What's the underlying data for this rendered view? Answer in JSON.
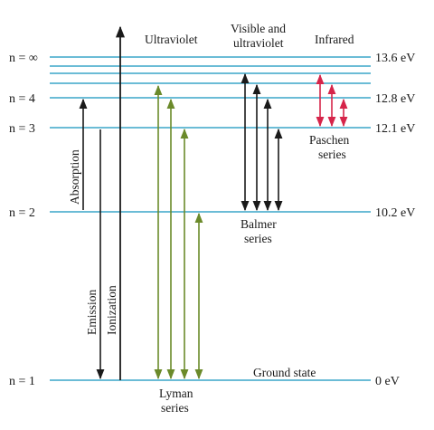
{
  "levels": [
    {
      "n_label": "n = ∞",
      "energy": "13.6 eV"
    },
    {
      "n_label": "n = 4",
      "energy": "12.8 eV"
    },
    {
      "n_label": "n = 3",
      "energy": "12.1 eV"
    },
    {
      "n_label": "n = 2",
      "energy": "10.2 eV"
    },
    {
      "n_label": "n = 1",
      "energy": "0 eV"
    }
  ],
  "region_labels": {
    "ultraviolet": "Ultraviolet",
    "visible_line1": "Visible and",
    "visible_line2": "ultraviolet",
    "infrared": "Infrared"
  },
  "process_labels": {
    "absorption": "Absorption",
    "emission": "Emission",
    "ionization": "Ionization"
  },
  "series_labels": {
    "lyman_line1": "Lyman",
    "lyman_line2": "series",
    "balmer_line1": "Balmer",
    "balmer_line2": "series",
    "paschen_line1": "Paschen",
    "paschen_line2": "series"
  },
  "ground_state": "Ground state",
  "colors": {
    "level_line": "#3aa6c9",
    "lyman": "#6b8a2a",
    "balmer": "#1a1a1a",
    "paschen": "#d6254a",
    "process": "#1a1a1a"
  }
}
